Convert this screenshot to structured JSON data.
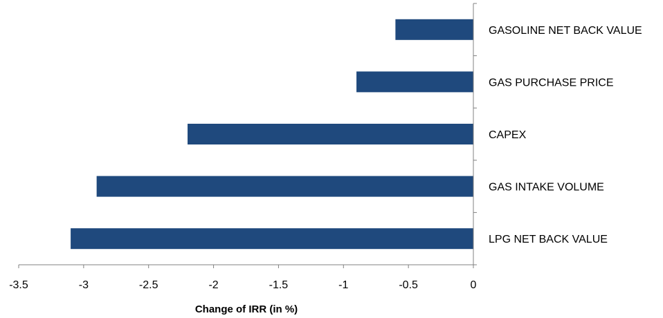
{
  "chart_data": {
    "type": "bar",
    "orientation": "horizontal",
    "title": "",
    "xlabel": "Change of IRR (in %)",
    "ylabel": "",
    "categories": [
      "GASOLINE NET BACK VALUE",
      "GAS PURCHASE PRICE",
      "CAPEX",
      "GAS INTAKE VOLUME",
      "LPG NET BACK VALUE"
    ],
    "values": [
      -0.6,
      -0.9,
      -2.2,
      -2.9,
      -3.1
    ],
    "xlim": [
      -3.5,
      0
    ],
    "xticks": [
      "-3.5",
      "-3",
      "-2.5",
      "-2",
      "-1.5",
      "-1",
      "-0.5",
      "0"
    ],
    "grid": false,
    "legend": "none",
    "bar_color": "#1f497d"
  }
}
